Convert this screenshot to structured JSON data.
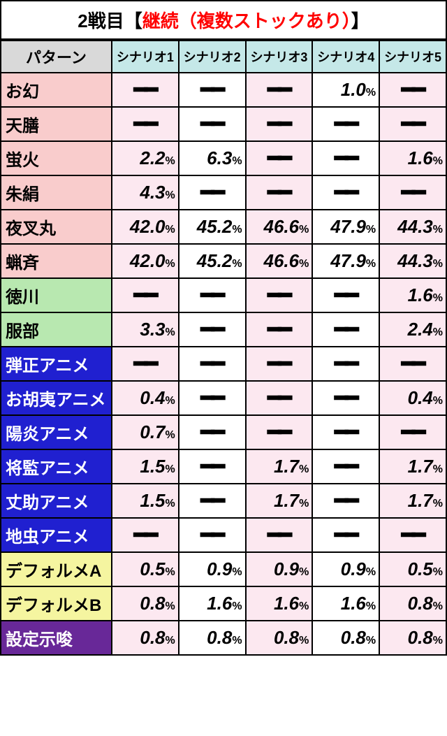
{
  "title": {
    "prefix": "2戦目【",
    "highlight": "継続（複数ストックあり）",
    "suffix": "】"
  },
  "headers": {
    "pattern": "パターン",
    "scenarios": [
      "シナリオ1",
      "シナリオ2",
      "シナリオ3",
      "シナリオ4",
      "シナリオ5"
    ]
  },
  "colors": {
    "pink": "#f9cccc",
    "green": "#b8e8b0",
    "blue": "#2020d0",
    "yellow": "#f5f5a0",
    "purple": "#682898",
    "lightpink_odd": "#fce8f0",
    "lightpink_even": "#ffffff",
    "header_gray": "#d9d9d9",
    "header_teal": "#c5e8e8"
  },
  "rows": [
    {
      "label": "お幻",
      "group": "pink",
      "values": [
        null,
        null,
        null,
        "1.0",
        null
      ]
    },
    {
      "label": "天膳",
      "group": "pink",
      "values": [
        null,
        null,
        null,
        null,
        null
      ]
    },
    {
      "label": "蛍火",
      "group": "pink",
      "values": [
        "2.2",
        "6.3",
        null,
        null,
        "1.6"
      ]
    },
    {
      "label": "朱絹",
      "group": "pink",
      "values": [
        "4.3",
        null,
        null,
        null,
        null
      ]
    },
    {
      "label": "夜叉丸",
      "group": "pink",
      "values": [
        "42.0",
        "45.2",
        "46.6",
        "47.9",
        "44.3"
      ]
    },
    {
      "label": "蝋斉",
      "group": "pink",
      "values": [
        "42.0",
        "45.2",
        "46.6",
        "47.9",
        "44.3"
      ]
    },
    {
      "label": "徳川",
      "group": "green",
      "values": [
        null,
        null,
        null,
        null,
        "1.6"
      ]
    },
    {
      "label": "服部",
      "group": "green",
      "values": [
        "3.3",
        null,
        null,
        null,
        "2.4"
      ]
    },
    {
      "label": "弾正アニメ",
      "group": "blue",
      "values": [
        null,
        null,
        null,
        null,
        null
      ]
    },
    {
      "label": "お胡夷アニメ",
      "group": "blue",
      "values": [
        "0.4",
        null,
        null,
        null,
        "0.4"
      ]
    },
    {
      "label": "陽炎アニメ",
      "group": "blue",
      "values": [
        "0.7",
        null,
        null,
        null,
        null
      ]
    },
    {
      "label": "将監アニメ",
      "group": "blue",
      "values": [
        "1.5",
        null,
        "1.7",
        null,
        "1.7"
      ]
    },
    {
      "label": "丈助アニメ",
      "group": "blue",
      "values": [
        "1.5",
        null,
        "1.7",
        null,
        "1.7"
      ]
    },
    {
      "label": "地虫アニメ",
      "group": "blue",
      "values": [
        null,
        null,
        null,
        null,
        null
      ]
    },
    {
      "label": "デフォルメA",
      "group": "yellow",
      "values": [
        "0.5",
        "0.9",
        "0.9",
        "0.9",
        "0.5"
      ]
    },
    {
      "label": "デフォルメB",
      "group": "yellow",
      "values": [
        "0.8",
        "1.6",
        "1.6",
        "1.6",
        "0.8"
      ]
    },
    {
      "label": "設定示唆",
      "group": "purple",
      "values": [
        "0.8",
        "0.8",
        "0.8",
        "0.8",
        "0.8"
      ]
    }
  ]
}
